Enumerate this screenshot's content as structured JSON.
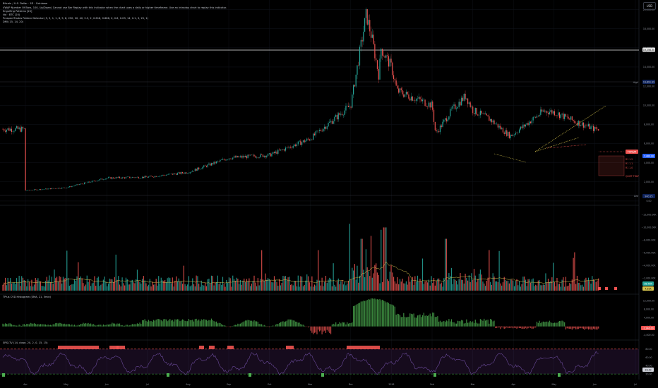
{
  "header": {
    "symbol_line": "Bitcoin / U.S. Dollar · 1D · Coinbase",
    "indicators": [
      "VWAP Number Of Bars, 100, Up/Down) Cannot use Bar Replay with this indicator when the chart uses a daily or higher timeframe. Use an intraday chart to replay this indicator.",
      "Engulfing Patterns [20]",
      "Vol · BTC (20)",
      "ProspectTrades Pattern Detector (5, 5, 1, 1, 8, 5, 8, 250, 20, 40, 2.5, 2, 0.618, 0.886, 0, 0.8, 0.03, 14, 0.1, 3, 25, 1)",
      "DMI (15, 14, 20)"
    ],
    "currency": "USD"
  },
  "price_axis": {
    "ticks": [
      "20,000.00",
      "18,000.00",
      "16,000.00",
      "14,000.00",
      "12,000.00",
      "10,000.00",
      "8,000.00",
      "6,000.00",
      "4,000.00",
      "2,000.00",
      "0.00"
    ],
    "tags": {
      "white_line": "19,256.30",
      "high": "19,891.99",
      "last_price": "7,460.00",
      "marker": "TOPS/M",
      "low": "900.25"
    },
    "high_label": "High",
    "low_label": "Low"
  },
  "volume_axis": {
    "ticks": [
      "~2,000.00K",
      "~4,000.00K",
      "~6,000.00K",
      "~8,000.00K",
      "~10,000.00K",
      "~12,000.00K"
    ],
    "value_tag": "38.75K",
    "sma_tag": "4.81K"
  },
  "histogram_panel": {
    "title": "TPlus CVD Histogram (SMA, 21, 5min)",
    "ticks": [
      "12,000.00",
      "8,000.00",
      "4,000.00",
      "0.00",
      "-4,000.00"
    ],
    "value_tag": "-1,246.00"
  },
  "osc_panel": {
    "title": "SRSI-TV (14, close, 20, 2, 0, 15, 15)",
    "ticks": [
      "80.00",
      "60.00",
      "40.00",
      "20.00"
    ],
    "value_tag": "28.30"
  },
  "time_axis": [
    "Apr",
    "May",
    "Jun",
    "Jul",
    "Aug",
    "Sep",
    "Oct",
    "Nov",
    "Dec",
    "2018",
    "Feb",
    "Mar",
    "Apr",
    "May",
    "Jun",
    "Jul"
  ],
  "pattern_labels": [
    "R1 1.2",
    "R1 1.1",
    "R1 1.0",
    "QUIET TRAP"
  ],
  "colors": {
    "bull": "#26a69a",
    "bear": "#ef5350",
    "sma": "#d4c24d",
    "hist": "#4caf50",
    "dmi": "#7b3fa0"
  },
  "chart_data": [
    {
      "type": "candlestick",
      "title": "Bitcoin / U.S. Dollar · 1D · Coinbase",
      "ylim": [
        -300,
        21000
      ],
      "months": [
        "Apr",
        "May",
        "Jun",
        "Jul",
        "Aug",
        "Sep",
        "Oct",
        "Nov",
        "Dec",
        "2018",
        "Feb",
        "Mar",
        "Apr",
        "May",
        "Jun",
        "Jul"
      ],
      "close_by_month": [
        1100,
        1400,
        2400,
        2500,
        3000,
        4500,
        4800,
        6500,
        10000,
        14000,
        10000,
        9500,
        7000,
        9300,
        7500,
        7460
      ],
      "high": 19891.99,
      "low": 900.25,
      "last": 7460.0
    },
    {
      "type": "bar",
      "title": "Vol · BTC (20)",
      "ylim": [
        0,
        12500
      ],
      "last": 38.75
    },
    {
      "type": "bar",
      "title": "TPlus CVD Histogram (SMA, 21, 5min)",
      "ylim": [
        -5000,
        14000
      ],
      "last": -1246.0
    },
    {
      "type": "line",
      "title": "SRSI-TV (14, close, 20, 2, 0, 15, 15)",
      "ylim": [
        10,
        95
      ],
      "last": 28.3
    }
  ]
}
